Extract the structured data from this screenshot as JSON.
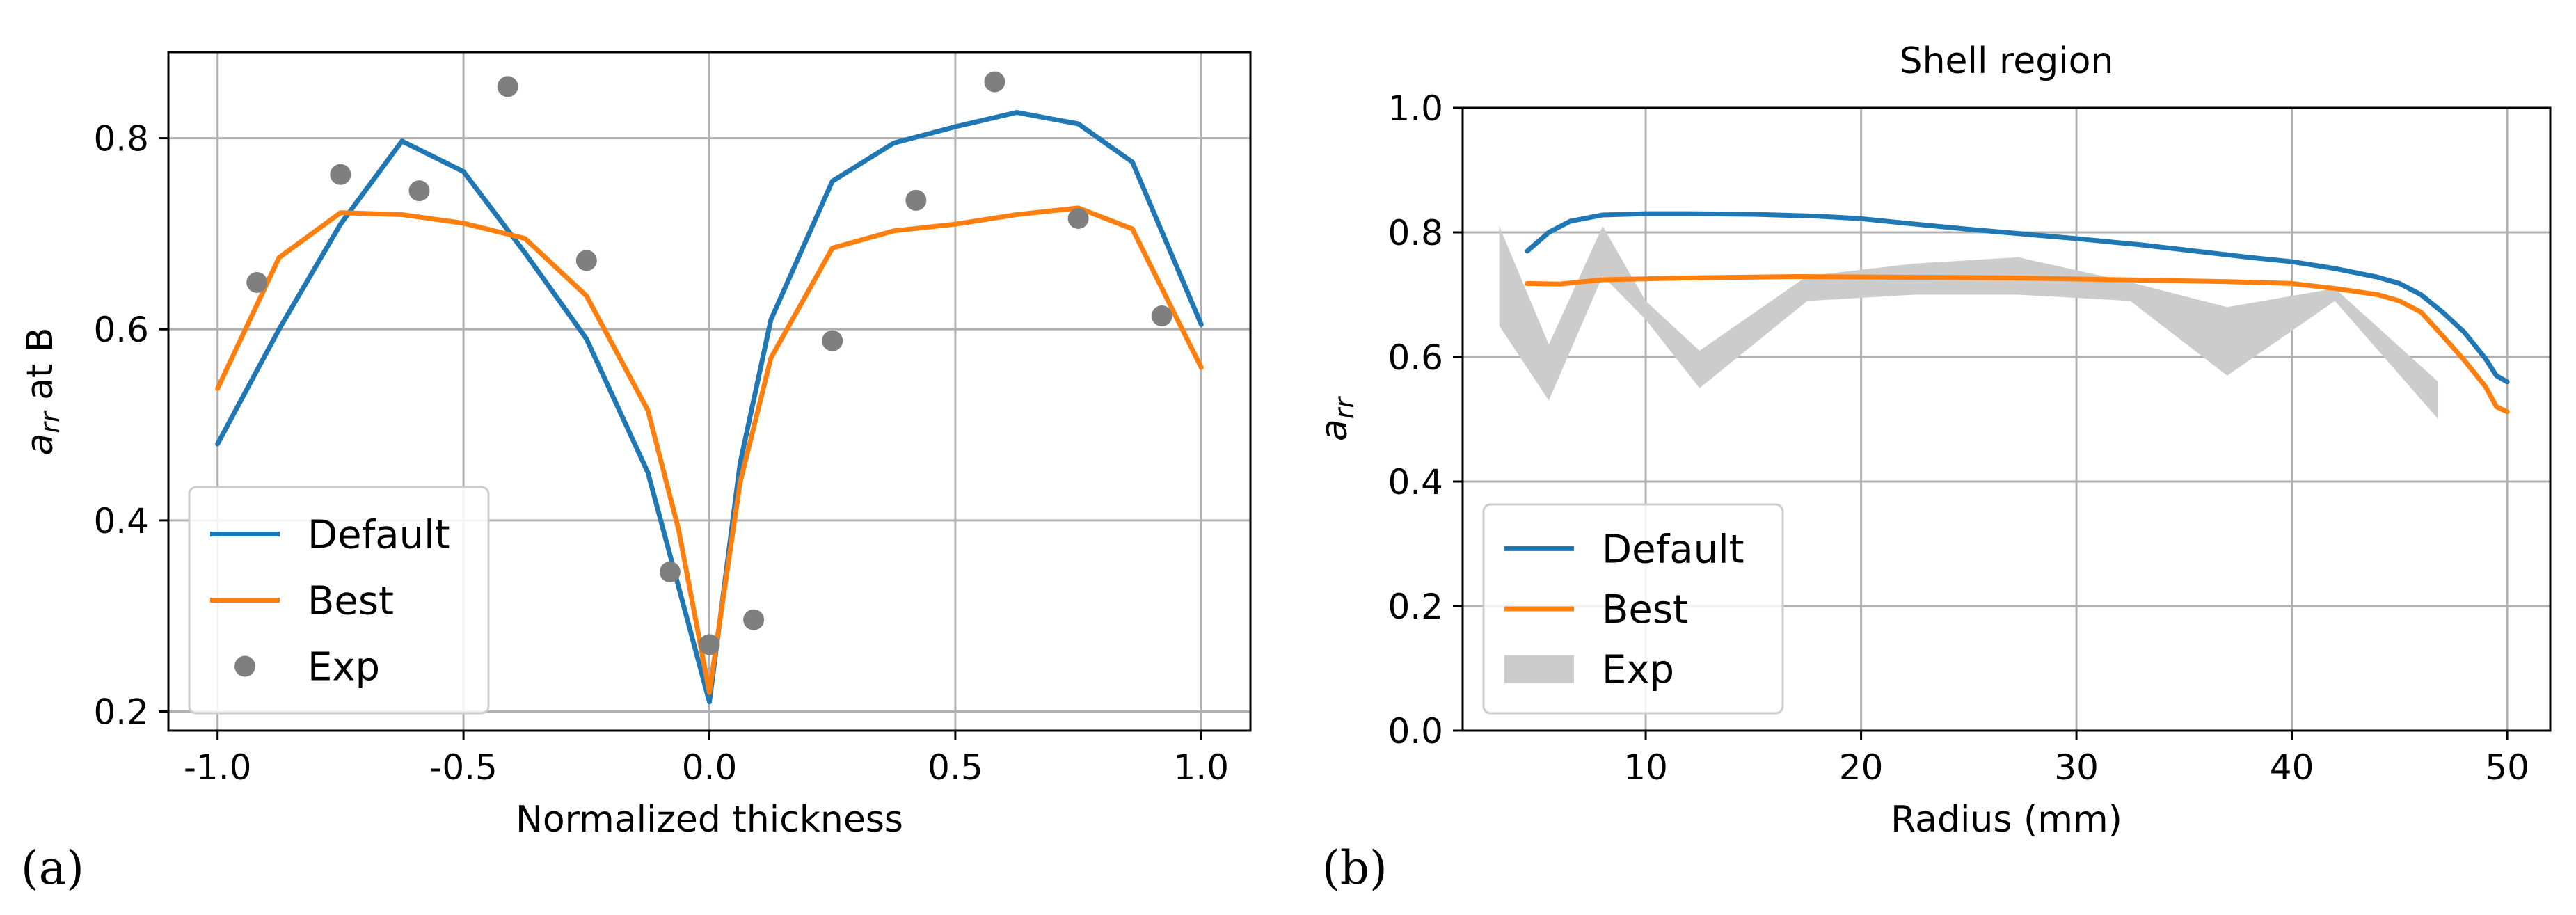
{
  "colors": {
    "default": "#1f77b4",
    "best": "#ff7f0e",
    "exp": "#7f7f7f",
    "exp_band": "#cccccc"
  },
  "chart_data": [
    {
      "type": "line",
      "panel_label": "(a)",
      "title": "",
      "xlabel": "Normalized thickness",
      "ylabel_main": "a",
      "ylabel_sub": "rr",
      "ylabel_rest": " at B",
      "xlim": [
        -1.1,
        1.1
      ],
      "ylim": [
        0.18,
        0.89
      ],
      "xticks": [
        -1.0,
        -0.5,
        0.0,
        0.5,
        1.0
      ],
      "xtick_labels": [
        "-1.0",
        "-0.5",
        "0.0",
        "0.5",
        "1.0"
      ],
      "yticks": [
        0.2,
        0.4,
        0.6,
        0.8
      ],
      "ytick_labels": [
        "0.2",
        "0.4",
        "0.6",
        "0.8"
      ],
      "grid": true,
      "legend_position": "bottom-left",
      "series": [
        {
          "name": "Default",
          "kind": "line",
          "color_key": "default",
          "x": [
            -1.0,
            -0.875,
            -0.75,
            -0.625,
            -0.5,
            -0.375,
            -0.25,
            -0.125,
            -0.0625,
            0.0,
            0.0625,
            0.125,
            0.25,
            0.375,
            0.5,
            0.625,
            0.75,
            0.86,
            1.0
          ],
          "y": [
            0.48,
            0.6,
            0.71,
            0.797,
            0.765,
            0.68,
            0.59,
            0.45,
            0.33,
            0.21,
            0.46,
            0.61,
            0.755,
            0.795,
            0.812,
            0.827,
            0.815,
            0.775,
            0.605
          ]
        },
        {
          "name": "Best",
          "kind": "line",
          "color_key": "best",
          "x": [
            -1.0,
            -0.875,
            -0.75,
            -0.625,
            -0.5,
            -0.375,
            -0.25,
            -0.125,
            -0.0625,
            0.0,
            0.0625,
            0.125,
            0.25,
            0.375,
            0.5,
            0.625,
            0.75,
            0.86,
            1.0
          ],
          "y": [
            0.538,
            0.675,
            0.722,
            0.72,
            0.711,
            0.695,
            0.635,
            0.515,
            0.39,
            0.22,
            0.44,
            0.57,
            0.685,
            0.703,
            0.71,
            0.72,
            0.727,
            0.705,
            0.56
          ]
        },
        {
          "name": "Exp",
          "kind": "scatter",
          "color_key": "exp",
          "x": [
            -0.92,
            -0.75,
            -0.59,
            -0.41,
            -0.25,
            -0.08,
            0.0,
            0.09,
            0.25,
            0.42,
            0.58,
            0.75,
            0.92
          ],
          "y": [
            0.649,
            0.762,
            0.745,
            0.854,
            0.672,
            0.346,
            0.27,
            0.296,
            0.588,
            0.735,
            0.859,
            0.716,
            0.614
          ]
        }
      ]
    },
    {
      "type": "line",
      "panel_label": "(b)",
      "title": "Shell region",
      "xlabel": "Radius (mm)",
      "ylabel_main": "a",
      "ylabel_sub": "rr",
      "ylabel_rest": "",
      "xlim": [
        1.5,
        52.0
      ],
      "ylim": [
        0.0,
        1.0
      ],
      "xticks": [
        10,
        20,
        30,
        40,
        50
      ],
      "xtick_labels": [
        "10",
        "20",
        "30",
        "40",
        "50"
      ],
      "yticks": [
        0.0,
        0.2,
        0.4,
        0.6,
        0.8,
        1.0
      ],
      "ytick_labels": [
        "0.0",
        "0.2",
        "0.4",
        "0.6",
        "0.8",
        "1.0"
      ],
      "grid": true,
      "legend_position": "bottom-left",
      "series": [
        {
          "name": "Default",
          "kind": "line",
          "color_key": "default",
          "x": [
            4.5,
            5.5,
            6.5,
            8,
            10,
            12,
            15,
            18,
            20,
            22,
            25,
            28,
            30,
            33,
            36,
            38,
            40,
            42,
            44,
            45,
            46,
            47,
            48,
            49,
            49.5,
            50
          ],
          "y": [
            0.77,
            0.8,
            0.818,
            0.828,
            0.83,
            0.83,
            0.829,
            0.826,
            0.822,
            0.815,
            0.805,
            0.796,
            0.79,
            0.78,
            0.768,
            0.76,
            0.753,
            0.742,
            0.728,
            0.718,
            0.7,
            0.672,
            0.64,
            0.597,
            0.57,
            0.56
          ]
        },
        {
          "name": "Best",
          "kind": "line",
          "color_key": "best",
          "x": [
            4.5,
            6,
            8,
            12,
            17,
            22,
            27,
            32,
            37,
            40,
            42,
            44,
            45,
            46,
            47,
            48,
            49,
            49.5,
            50
          ],
          "y": [
            0.718,
            0.717,
            0.724,
            0.727,
            0.729,
            0.728,
            0.727,
            0.724,
            0.721,
            0.718,
            0.71,
            0.7,
            0.69,
            0.672,
            0.634,
            0.595,
            0.552,
            0.52,
            0.512
          ]
        },
        {
          "name": "Exp",
          "kind": "band",
          "color_key": "exp_band",
          "x": [
            3.2,
            5.5,
            8.0,
            10.0,
            12.5,
            17.5,
            22.5,
            27.3,
            32.5,
            37.0,
            42.0,
            46.8
          ],
          "lower": [
            0.65,
            0.53,
            0.73,
            0.66,
            0.55,
            0.69,
            0.7,
            0.7,
            0.69,
            0.57,
            0.69,
            0.5
          ],
          "upper": [
            0.81,
            0.62,
            0.81,
            0.69,
            0.61,
            0.73,
            0.75,
            0.76,
            0.72,
            0.68,
            0.71,
            0.56
          ]
        }
      ]
    }
  ]
}
